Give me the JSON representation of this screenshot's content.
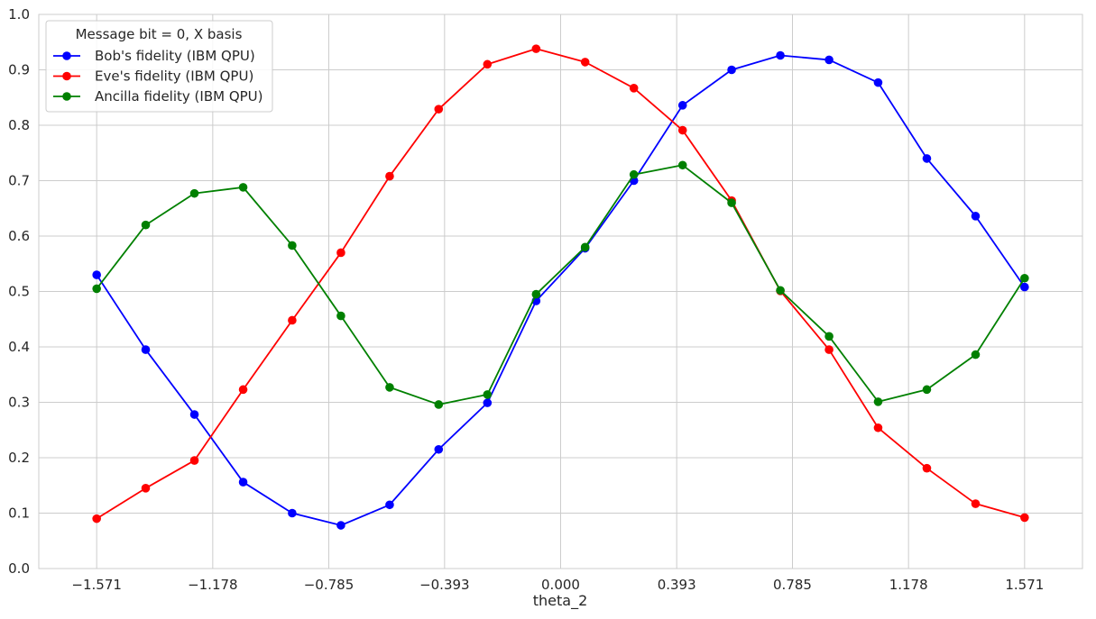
{
  "chart_data": {
    "type": "line",
    "title": "",
    "xlabel": "theta_2",
    "ylabel": "",
    "xlim": [
      -1.767,
      1.767
    ],
    "ylim": [
      0.0,
      1.0
    ],
    "grid": true,
    "legend_title": "Message bit = 0, X basis",
    "legend_position": "top-left",
    "x_ticks": [
      -1.571,
      -1.178,
      -0.785,
      -0.393,
      0.0,
      0.393,
      0.785,
      1.178,
      1.571
    ],
    "x_tick_labels": [
      "−1.571",
      "−1.178",
      "−0.785",
      "−0.393",
      "0.000",
      "0.393",
      "0.785",
      "1.178",
      "1.571"
    ],
    "y_ticks": [
      0.0,
      0.1,
      0.2,
      0.3,
      0.4,
      0.5,
      0.6,
      0.7,
      0.8,
      0.9,
      1.0
    ],
    "y_tick_labels": [
      "0.0",
      "0.1",
      "0.2",
      "0.3",
      "0.4",
      "0.5",
      "0.6",
      "0.7",
      "0.8",
      "0.9",
      "1.0"
    ],
    "x": [
      -1.571,
      -1.405,
      -1.24,
      -1.075,
      -0.909,
      -0.744,
      -0.579,
      -0.413,
      -0.248,
      -0.083,
      0.083,
      0.248,
      0.413,
      0.579,
      0.744,
      0.909,
      1.075,
      1.24,
      1.405,
      1.571
    ],
    "series": [
      {
        "name": "Bob's fidelity (IBM QPU)",
        "color": "#0000ff",
        "values": [
          0.53,
          0.395,
          0.278,
          0.156,
          0.1,
          0.078,
          0.115,
          0.215,
          0.299,
          0.483,
          0.578,
          0.7,
          0.836,
          0.9,
          0.926,
          0.918,
          0.877,
          0.74,
          0.636,
          0.508
        ]
      },
      {
        "name": "Eve's fidelity (IBM QPU)",
        "color": "#ff0000",
        "values": [
          0.09,
          0.145,
          0.195,
          0.323,
          0.448,
          0.57,
          0.708,
          0.829,
          0.91,
          0.938,
          0.914,
          0.867,
          0.791,
          0.664,
          0.501,
          0.395,
          0.254,
          0.181,
          0.117,
          0.092
        ]
      },
      {
        "name": "Ancilla fidelity (IBM QPU)",
        "color": "#008000",
        "values": [
          0.505,
          0.62,
          0.677,
          0.688,
          0.583,
          0.456,
          0.327,
          0.296,
          0.314,
          0.495,
          0.58,
          0.711,
          0.728,
          0.66,
          0.502,
          0.419,
          0.301,
          0.323,
          0.386,
          0.524
        ]
      }
    ]
  }
}
